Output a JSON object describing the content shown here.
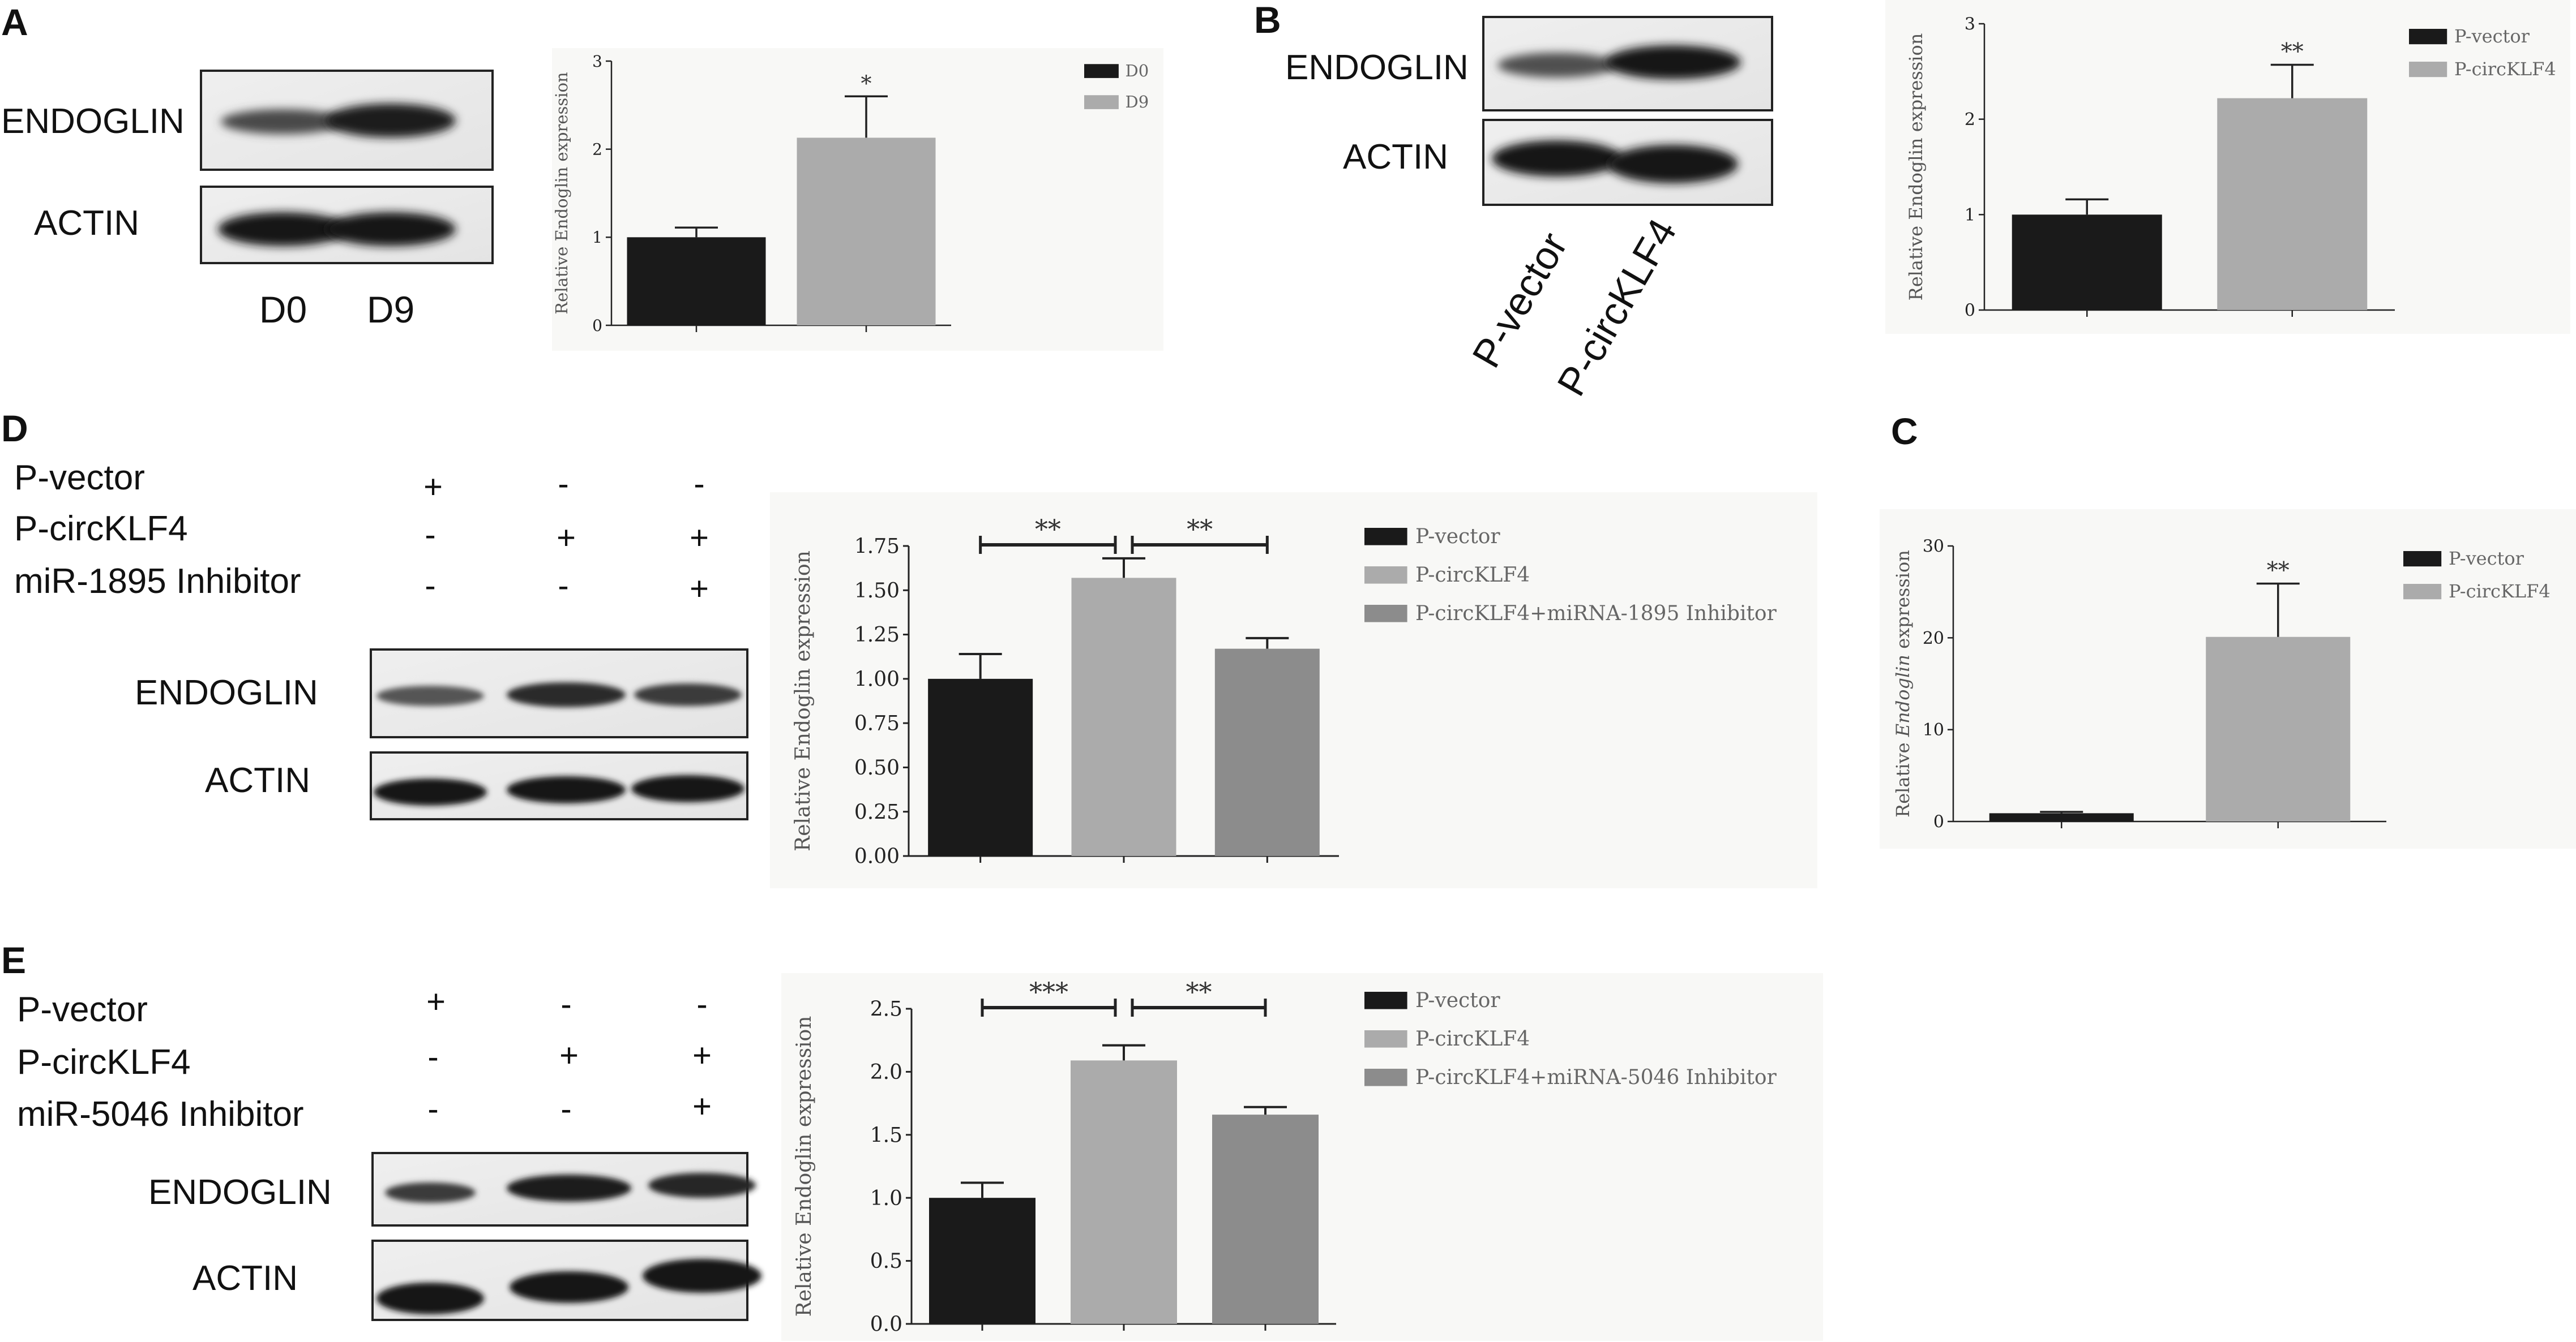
{
  "panels": {
    "A": {
      "letter": "A",
      "blot": {
        "rows": [
          "ENDOGLIN",
          "ACTIN"
        ],
        "lanes": [
          "D0",
          "D9"
        ]
      },
      "chart_data": {
        "type": "bar",
        "ylabel": "Relative Endoglin expression",
        "ylim": [
          0,
          3
        ],
        "yticks": [
          "0",
          "1",
          "2",
          "3"
        ],
        "categories": [
          "D0",
          "D9"
        ],
        "values": [
          1.0,
          2.13
        ],
        "errors": [
          0.11,
          0.47
        ],
        "colors": [
          "#1a1a1a",
          "#ababab"
        ],
        "legend": [
          "D0",
          "D9"
        ],
        "significance": [
          {
            "bar": 1,
            "label": "*"
          }
        ],
        "grid": false,
        "legend_position": "top-right"
      }
    },
    "B": {
      "letter": "B",
      "blot": {
        "rows": [
          "ENDOGLIN",
          "ACTIN"
        ],
        "lanes": [
          "P-vector",
          "P-circKLF4"
        ]
      },
      "chart_data": {
        "type": "bar",
        "ylabel": "Relative Endoglin expression",
        "ylim": [
          0,
          3
        ],
        "yticks": [
          "0",
          "1",
          "2",
          "3"
        ],
        "categories": [
          "P-vector",
          "P-circKLF4"
        ],
        "values": [
          1.0,
          2.22
        ],
        "errors": [
          0.16,
          0.35
        ],
        "colors": [
          "#1a1a1a",
          "#ababab"
        ],
        "legend": [
          "P-vector",
          "P-circKLF4"
        ],
        "significance": [
          {
            "bar": 1,
            "label": "**"
          }
        ],
        "grid": false,
        "legend_position": "top-right"
      }
    },
    "C": {
      "letter": "C",
      "chart_data": {
        "type": "bar",
        "ylabel_prefix": "Relative ",
        "ylabel_italic": "Endoglin",
        "ylabel_suffix": " expression",
        "ylim": [
          0,
          30
        ],
        "yticks": [
          "0",
          "10",
          "20",
          "30"
        ],
        "categories": [
          "P-vector",
          "P-circKLF4"
        ],
        "values": [
          0.9,
          20.1
        ],
        "errors": [
          0.15,
          5.8
        ],
        "colors": [
          "#1a1a1a",
          "#ababab"
        ],
        "legend": [
          "P-vector",
          "P-circKLF4"
        ],
        "significance": [
          {
            "bar": 1,
            "label": "**"
          }
        ],
        "grid": false,
        "legend_position": "top-right"
      }
    },
    "D": {
      "letter": "D",
      "conditions": [
        {
          "label": "P-vector",
          "signs": [
            "+",
            "-",
            "-"
          ]
        },
        {
          "label": "P-circKLF4",
          "signs": [
            "-",
            "+",
            "+"
          ]
        },
        {
          "label": "miR-1895 Inhibitor",
          "signs": [
            "-",
            "-",
            "+"
          ]
        }
      ],
      "blot": {
        "rows": [
          "ENDOGLIN",
          "ACTIN"
        ]
      },
      "chart_data": {
        "type": "bar",
        "ylabel": "Relative Endoglin expression",
        "ylim": [
          0,
          1.75
        ],
        "yticks": [
          "0.00",
          "0.25",
          "0.50",
          "0.75",
          "1.00",
          "1.25",
          "1.50",
          "1.75"
        ],
        "categories": [
          "P-vector",
          "P-circKLF4",
          "P-circKLF4+miRNA-1895 Inhibitor"
        ],
        "values": [
          1.0,
          1.57,
          1.17
        ],
        "errors": [
          0.14,
          0.11,
          0.06
        ],
        "colors": [
          "#1a1a1a",
          "#ababab",
          "#8c8c8c"
        ],
        "legend": [
          "P-vector",
          "P-circKLF4",
          "P-circKLF4+miRNA-1895 Inhibitor"
        ],
        "brackets": [
          {
            "from": 0,
            "to": 1,
            "label": "**"
          },
          {
            "from": 1,
            "to": 2,
            "label": "**"
          }
        ],
        "grid": false,
        "legend_position": "top-right"
      }
    },
    "E": {
      "letter": "E",
      "conditions": [
        {
          "label": "P-vector",
          "signs": [
            "+",
            "-",
            "-"
          ]
        },
        {
          "label": "P-circKLF4",
          "signs": [
            "-",
            "+",
            "+"
          ]
        },
        {
          "label": "miR-5046 Inhibitor",
          "signs": [
            "-",
            "-",
            "+"
          ]
        }
      ],
      "blot": {
        "rows": [
          "ENDOGLIN",
          "ACTIN"
        ]
      },
      "chart_data": {
        "type": "bar",
        "ylabel": "Relative Endoglin expression",
        "ylim": [
          0,
          2.5
        ],
        "yticks": [
          "0.0",
          "0.5",
          "1.0",
          "1.5",
          "2.0",
          "2.5"
        ],
        "categories": [
          "P-vector",
          "P-circKLF4",
          "P-circKLF4+miRNA-5046 Inhibitor"
        ],
        "values": [
          1.0,
          2.09,
          1.66
        ],
        "errors": [
          0.12,
          0.12,
          0.06
        ],
        "colors": [
          "#1a1a1a",
          "#ababab",
          "#8c8c8c"
        ],
        "legend": [
          "P-vector",
          "P-circKLF4",
          "P-circKLF4+miRNA-5046 Inhibitor"
        ],
        "brackets": [
          {
            "from": 0,
            "to": 1,
            "label": "***"
          },
          {
            "from": 1,
            "to": 2,
            "label": "**"
          }
        ],
        "grid": false,
        "legend_position": "top-right"
      }
    }
  }
}
